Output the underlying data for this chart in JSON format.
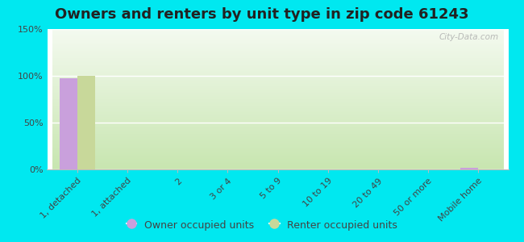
{
  "title": "Owners and renters by unit type in zip code 61243",
  "categories": [
    "1, detached",
    "1, attached",
    "2",
    "3 or 4",
    "5 to 9",
    "10 to 19",
    "20 to 49",
    "50 or more",
    "Mobile home"
  ],
  "owner_values": [
    97,
    0,
    0,
    0,
    0,
    0,
    0,
    0,
    2
  ],
  "renter_values": [
    100,
    0,
    0,
    0,
    0,
    0,
    0,
    0,
    0
  ],
  "owner_color": "#c9a0dc",
  "renter_color": "#c8d89a",
  "background_outer": "#00e8f0",
  "gradient_bottom": "#c8e6b0",
  "gradient_top": "#f4faf0",
  "ylim": [
    0,
    150
  ],
  "yticks": [
    0,
    50,
    100,
    150
  ],
  "ytick_labels": [
    "0%",
    "50%",
    "100%",
    "150%"
  ],
  "bar_width": 0.35,
  "legend_label_owner": "Owner occupied units",
  "legend_label_renter": "Renter occupied units",
  "watermark": "City-Data.com",
  "title_fontsize": 13,
  "tick_fontsize": 8,
  "legend_fontsize": 9
}
